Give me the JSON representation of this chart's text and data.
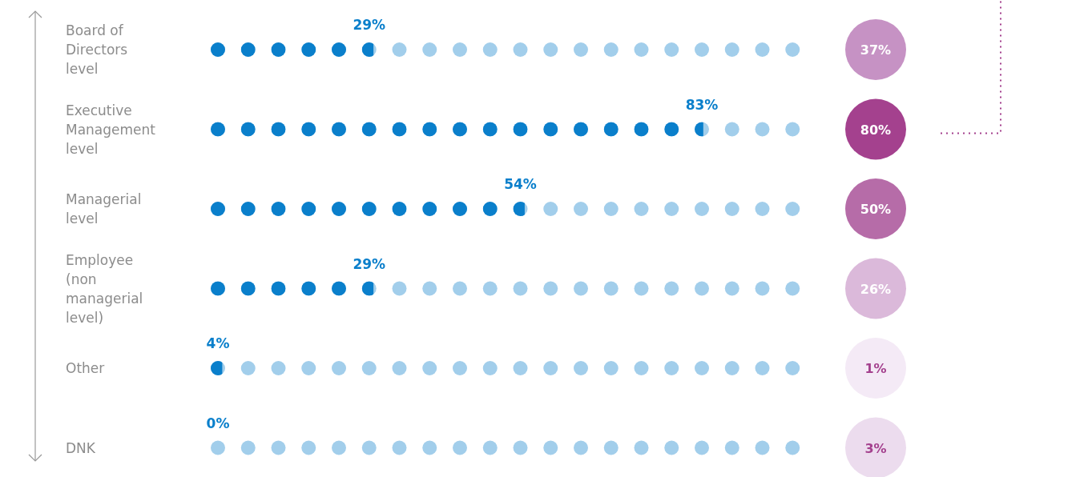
{
  "chart_data": {
    "type": "other",
    "categories": [
      "Board of Directors level",
      "Executive Management level",
      "Managerial level",
      "Employee (non managerial level)",
      "Other",
      "DNK"
    ],
    "series": [
      {
        "values": [
          29,
          83,
          54,
          29,
          4,
          0
        ],
        "value_labels": [
          "29%",
          "83%",
          "54%",
          "29%",
          "4%",
          "0%"
        ],
        "color": "#0a7fcb"
      },
      {
        "values": [
          37,
          80,
          50,
          26,
          1,
          3
        ],
        "value_labels": [
          "37%",
          "80%",
          "50%",
          "26%",
          "1%",
          "3%"
        ],
        "colors": [
          "#c692c4",
          "#a4418e",
          "#b66ca8",
          "#dbb9da",
          "#f4eaf6",
          "#ecdcee"
        ]
      }
    ]
  }
}
